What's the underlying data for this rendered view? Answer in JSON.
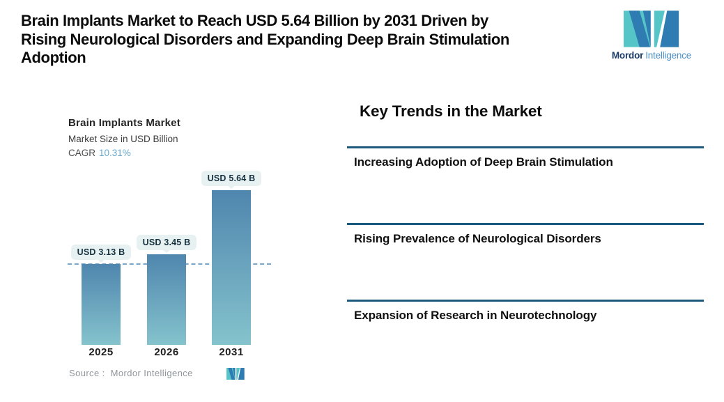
{
  "page": {
    "title_lines": [
      "Brain Implants Market to Reach USD 5.64 Billion by 2031 Driven by",
      "Rising Neurological Disorders and Expanding Deep Brain Stimulation",
      "Adoption"
    ]
  },
  "brand": {
    "name_bold": "Mordor",
    "name_light": "Intelligence",
    "logo_teal": "#56c5c8",
    "logo_blue": "#2f7cb2"
  },
  "chart": {
    "title": "Brain Implants Market",
    "subtitle": "Market Size in USD Billion",
    "cagr_label": "CAGR",
    "cagr_value": "10.31%",
    "source_label": "Source :",
    "source_value": "Mordor Intelligence"
  },
  "chart_data": {
    "type": "bar",
    "title": "Brain Implants Market",
    "subtitle": "Market Size in USD Billion",
    "cagr_percent": 10.31,
    "categories": [
      "2025",
      "2026",
      "2031"
    ],
    "values": [
      3.13,
      3.45,
      5.64
    ],
    "value_labels": [
      "USD 3.13 B",
      "USD 3.45 B",
      "USD 5.64 B"
    ],
    "ylabel": "Market Size in USD Billion",
    "reference_line": {
      "value": 3.13,
      "style": "dashed"
    },
    "grid": false,
    "legend": false,
    "colors": {
      "bar_top": "#4f86ae",
      "bar_bottom": "#85c3cd",
      "dashed_line": "#7aa7c9",
      "badge_bg": "#e8f1f2",
      "cagr_value": "#69a9cd"
    }
  },
  "trends": {
    "heading": "Key Trends in the Market",
    "divider_color": "#1b5a7c",
    "items": [
      "Increasing Adoption of Deep Brain Stimulation",
      "Rising Prevalence of Neurological Disorders",
      "Expansion of Research in Neurotechnology"
    ]
  }
}
